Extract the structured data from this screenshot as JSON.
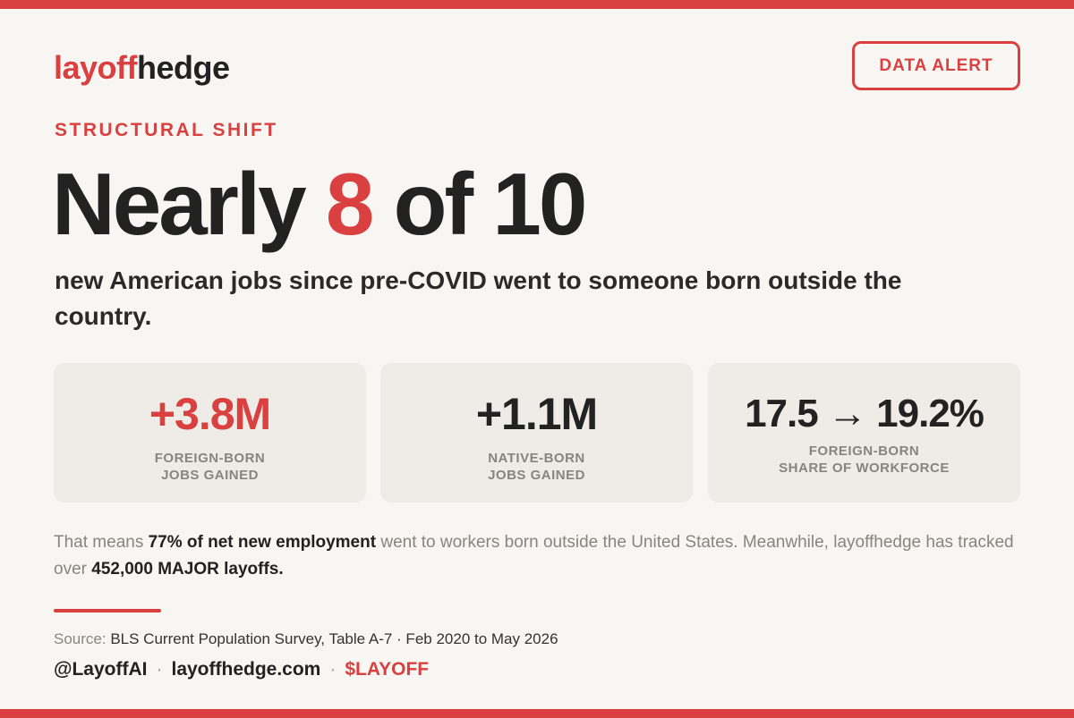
{
  "brand": {
    "logo_accent": "layoff",
    "logo_rest": "hedge",
    "accent_color": "#d9403f"
  },
  "badge": {
    "label": "DATA ALERT"
  },
  "kicker": "STRUCTURAL SHIFT",
  "headline": {
    "prefix": "Nearly",
    "number": "8",
    "suffix": "of 10"
  },
  "subhead": "new American jobs since pre-COVID went to someone born outside the country.",
  "stats": [
    {
      "value": "+3.8M",
      "label_line1": "FOREIGN-BORN",
      "label_line2": "JOBS GAINED"
    },
    {
      "value": "+1.1M",
      "label_line1": "NATIVE-BORN",
      "label_line2": "JOBS GAINED"
    },
    {
      "value": "17.5 → 19.2%",
      "label_line1": "FOREIGN-BORN",
      "label_line2": "SHARE OF WORKFORCE"
    }
  ],
  "body": {
    "part1": "That means ",
    "bold1": "77% of net new employment",
    "part2": " went to workers born outside the United States. Meanwhile, layoffhedge has tracked over ",
    "bold2": "452,000 MAJOR layoffs."
  },
  "source": {
    "label": "Source:",
    "value": "BLS Current Population Survey, Table A-7 · Feb 2020 to May 2026"
  },
  "footer": {
    "handle": "@LayoffAI",
    "site": "layoffhedge.com",
    "ticker": "$LAYOFF",
    "separator": "·"
  }
}
